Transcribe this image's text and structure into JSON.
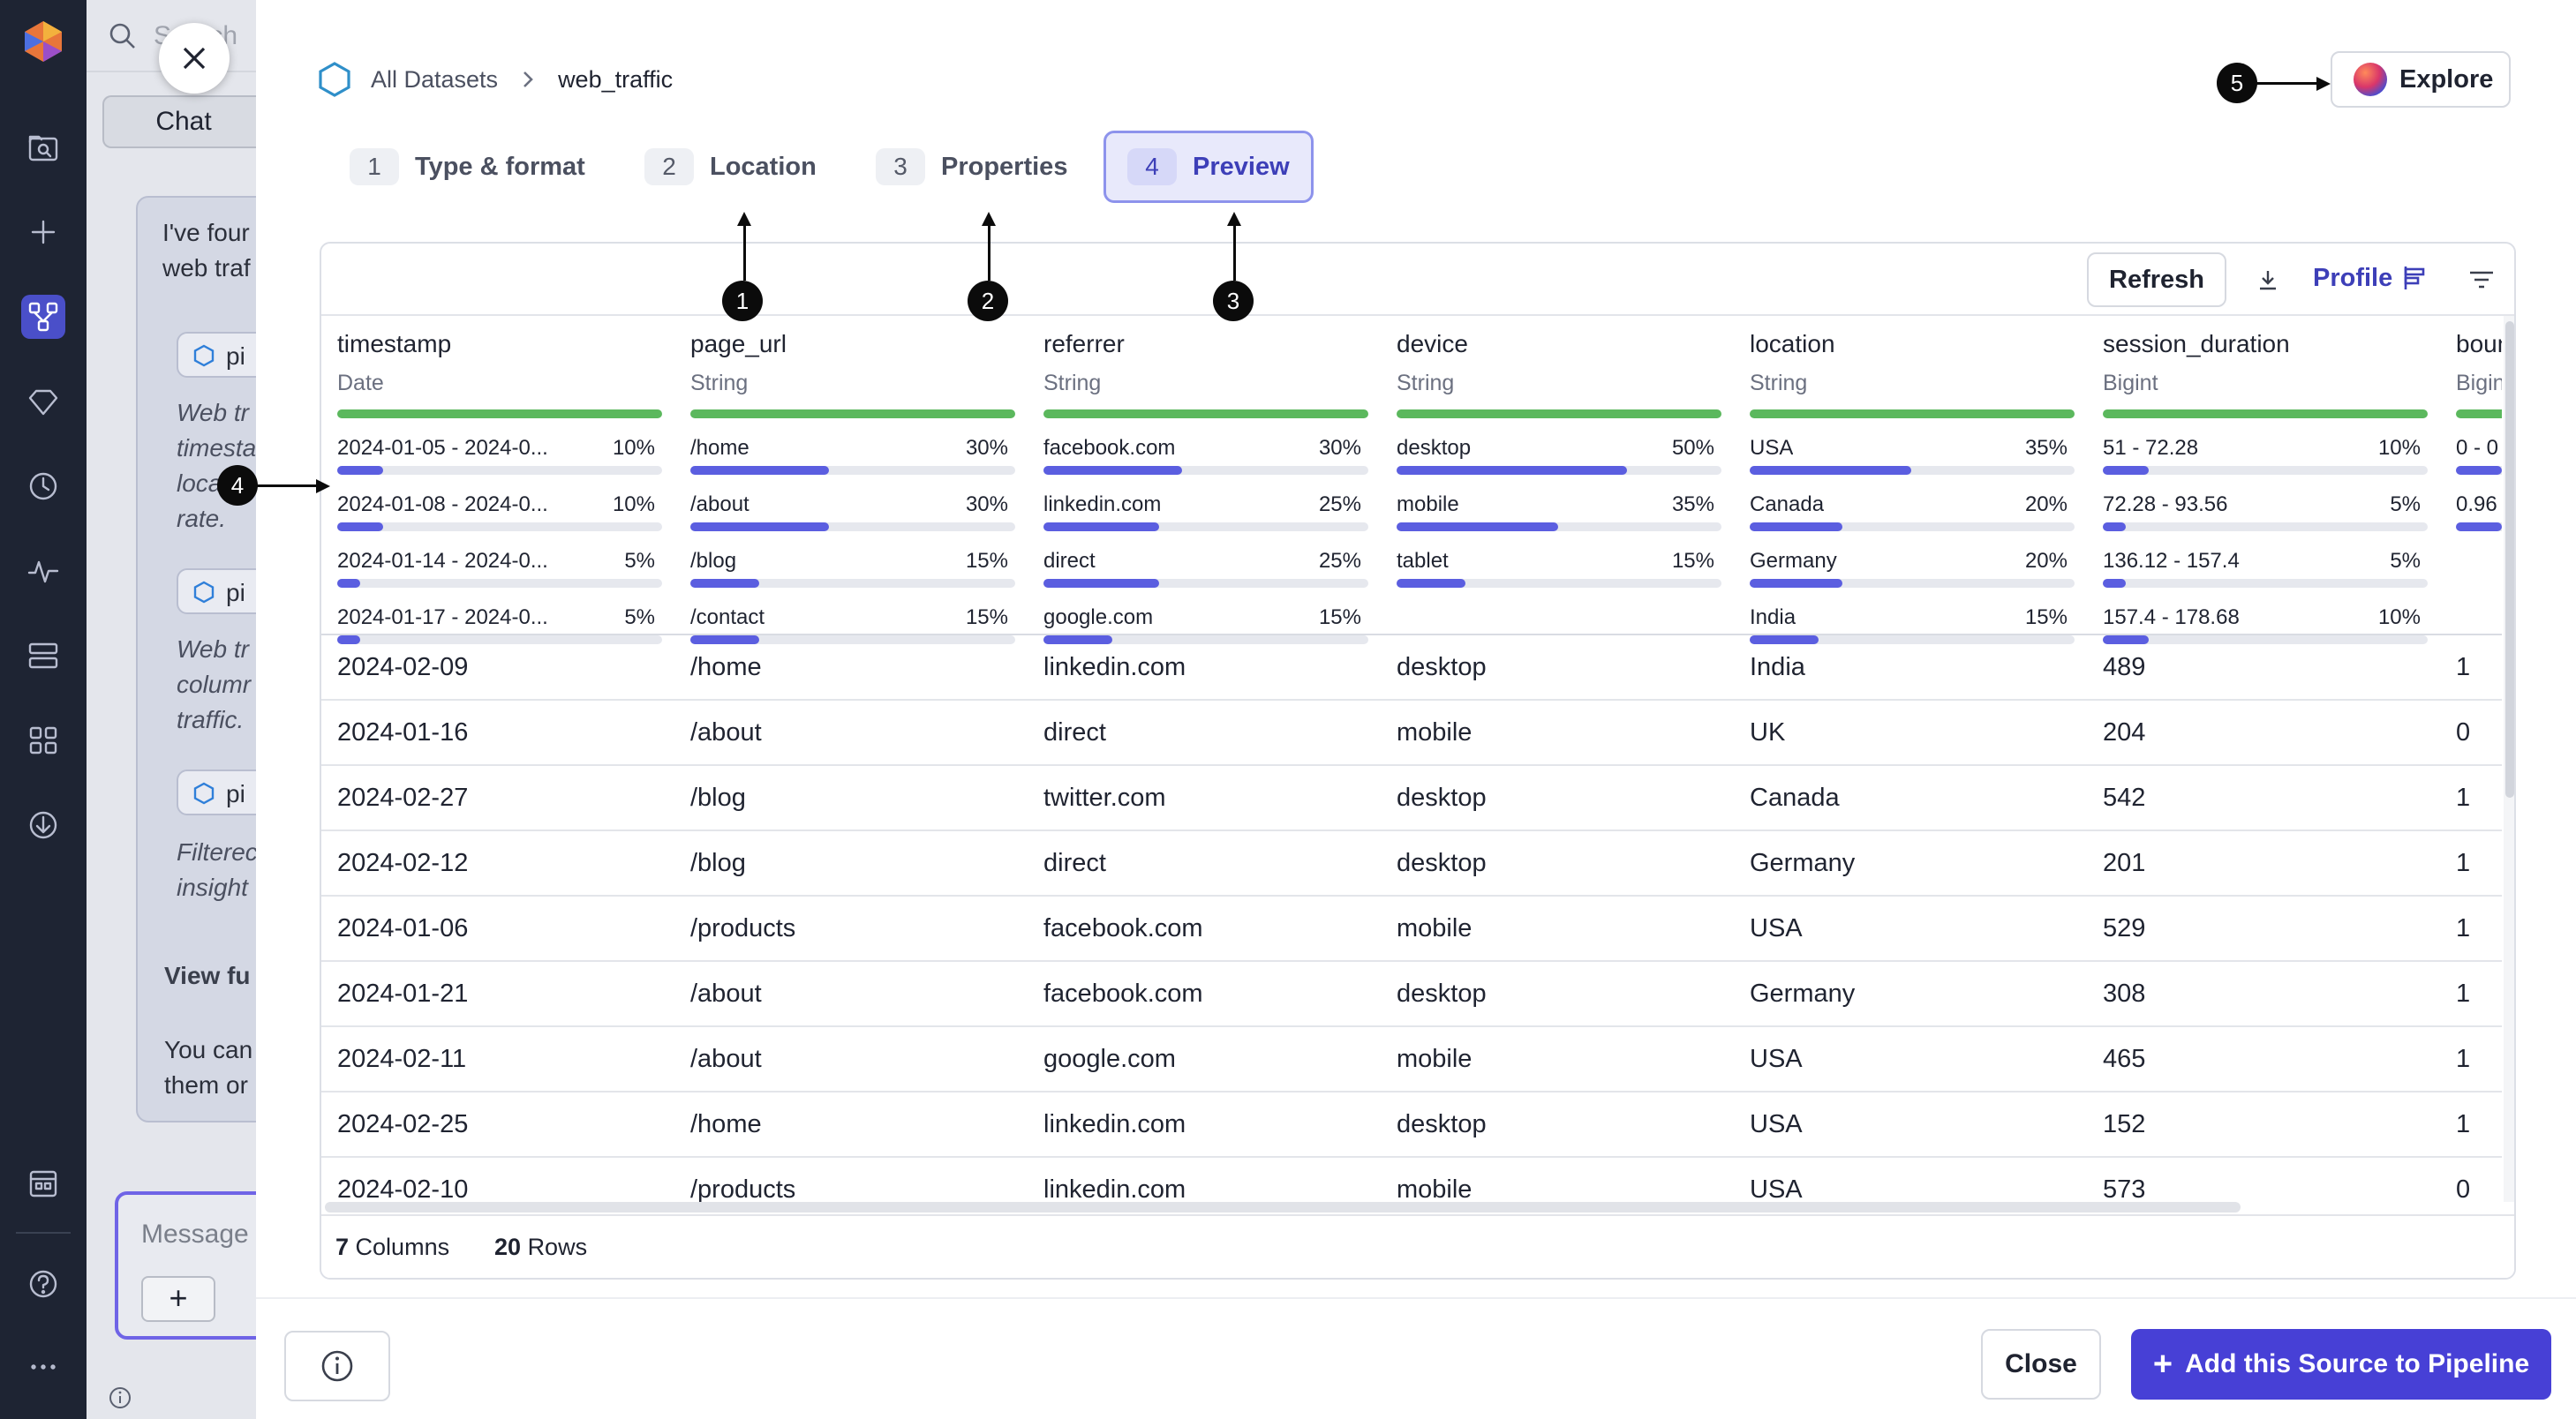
{
  "chat": {
    "search_placeholder": "Search",
    "tab_label": "Chat",
    "message_lines": [
      "I've four",
      "web traf"
    ],
    "pills": [
      "pi",
      "pi",
      "pi"
    ],
    "italic_blocks": [
      [
        "Web tr",
        "timesta",
        "loca",
        "rate."
      ],
      [
        "Web tr",
        "columr",
        "traffic."
      ],
      [
        "Filterec",
        "insight"
      ]
    ],
    "view_full": "View fu",
    "you_can": [
      "You can",
      "them or"
    ],
    "composer_placeholder": "Message .",
    "composer_plus": "+"
  },
  "breadcrumb": {
    "root": "All Datasets",
    "current": "web_traffic"
  },
  "explore_label": "Explore",
  "steps": [
    {
      "num": "1",
      "label": "Type & format"
    },
    {
      "num": "2",
      "label": "Location"
    },
    {
      "num": "3",
      "label": "Properties"
    },
    {
      "num": "4",
      "label": "Preview"
    }
  ],
  "annotations": [
    "1",
    "2",
    "3",
    "4",
    "5"
  ],
  "toolbar": {
    "refresh": "Refresh",
    "profile": "Profile"
  },
  "columns": [
    {
      "name": "timestamp",
      "type": "Date",
      "freqs": [
        {
          "label": "2024-01-05 - 2024-0...",
          "pct": "10%",
          "value": 0.1
        },
        {
          "label": "2024-01-08 - 2024-0...",
          "pct": "10%",
          "value": 0.1
        },
        {
          "label": "2024-01-14 - 2024-0...",
          "pct": "5%",
          "value": 0.05
        },
        {
          "label": "2024-01-17 - 2024-0...",
          "pct": "5%",
          "value": 0.05
        }
      ]
    },
    {
      "name": "page_url",
      "type": "String",
      "freqs": [
        {
          "label": "/home",
          "pct": "30%",
          "value": 0.3
        },
        {
          "label": "/about",
          "pct": "30%",
          "value": 0.3
        },
        {
          "label": "/blog",
          "pct": "15%",
          "value": 0.15
        },
        {
          "label": "/contact",
          "pct": "15%",
          "value": 0.15
        }
      ]
    },
    {
      "name": "referrer",
      "type": "String",
      "freqs": [
        {
          "label": "facebook.com",
          "pct": "30%",
          "value": 0.3
        },
        {
          "label": "linkedin.com",
          "pct": "25%",
          "value": 0.25
        },
        {
          "label": "direct",
          "pct": "25%",
          "value": 0.25
        },
        {
          "label": "google.com",
          "pct": "15%",
          "value": 0.15
        }
      ]
    },
    {
      "name": "device",
      "type": "String",
      "freqs": [
        {
          "label": "desktop",
          "pct": "50%",
          "value": 0.5
        },
        {
          "label": "mobile",
          "pct": "35%",
          "value": 0.35
        },
        {
          "label": "tablet",
          "pct": "15%",
          "value": 0.15
        }
      ]
    },
    {
      "name": "location",
      "type": "String",
      "freqs": [
        {
          "label": "USA",
          "pct": "35%",
          "value": 0.35
        },
        {
          "label": "Canada",
          "pct": "20%",
          "value": 0.2
        },
        {
          "label": "Germany",
          "pct": "20%",
          "value": 0.2
        },
        {
          "label": "India",
          "pct": "15%",
          "value": 0.15
        }
      ]
    },
    {
      "name": "session_duration",
      "type": "Bigint",
      "freqs": [
        {
          "label": "51 - 72.28",
          "pct": "10%",
          "value": 0.1
        },
        {
          "label": "72.28 - 93.56",
          "pct": "5%",
          "value": 0.05
        },
        {
          "label": "136.12 - 157.4",
          "pct": "5%",
          "value": 0.05
        },
        {
          "label": "157.4 - 178.68",
          "pct": "10%",
          "value": 0.1
        }
      ]
    },
    {
      "name": "boun",
      "type": "Bigin",
      "freqs": [
        {
          "label": "0 - 0",
          "pct": "",
          "value": 0.1
        },
        {
          "label": "0.96",
          "pct": "",
          "value": 0.1
        }
      ]
    }
  ],
  "rows": [
    [
      "2024-02-09",
      "/home",
      "linkedin.com",
      "desktop",
      "India",
      "489",
      "1"
    ],
    [
      "2024-01-16",
      "/about",
      "direct",
      "mobile",
      "UK",
      "204",
      "0"
    ],
    [
      "2024-02-27",
      "/blog",
      "twitter.com",
      "desktop",
      "Canada",
      "542",
      "1"
    ],
    [
      "2024-02-12",
      "/blog",
      "direct",
      "desktop",
      "Germany",
      "201",
      "1"
    ],
    [
      "2024-01-06",
      "/products",
      "facebook.com",
      "mobile",
      "USA",
      "529",
      "1"
    ],
    [
      "2024-01-21",
      "/about",
      "facebook.com",
      "desktop",
      "Germany",
      "308",
      "1"
    ],
    [
      "2024-02-11",
      "/about",
      "google.com",
      "mobile",
      "USA",
      "465",
      "1"
    ],
    [
      "2024-02-25",
      "/home",
      "linkedin.com",
      "desktop",
      "USA",
      "152",
      "1"
    ],
    [
      "2024-02-10",
      "/products",
      "linkedin.com",
      "mobile",
      "USA",
      "573",
      "0"
    ]
  ],
  "footer": {
    "columns_count": "7",
    "columns_label": "Columns",
    "rows_count": "20",
    "rows_label": "Rows"
  },
  "actions": {
    "close": "Close",
    "add": "Add this Source to Pipeline",
    "add_icon": "+"
  },
  "colors": {
    "accent": "#4740d6",
    "full_bar": "#5bb85d",
    "freq_bar": "#5b5ee0",
    "rail": "#1e2433"
  }
}
